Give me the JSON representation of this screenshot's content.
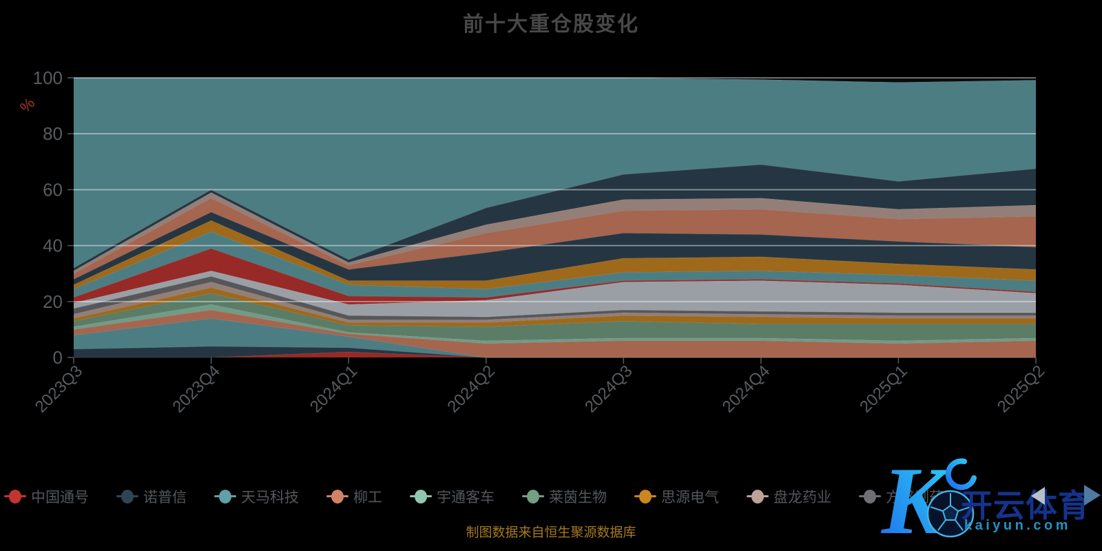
{
  "title": "前十大重仓股变化",
  "footer_note": "制图数据来自恒生聚源数据库",
  "watermark": {
    "brand": "开云体育",
    "domain": "kaiyun.com",
    "logo_letter": "K",
    "logo_icon": "soccer-ball"
  },
  "y_axis": {
    "unit_label": "%",
    "ticks": [
      0,
      20,
      40,
      60,
      80,
      100
    ],
    "unit_color": "#b0342c"
  },
  "x_axis": {
    "categories": [
      "2023Q3",
      "2023Q4",
      "2024Q1",
      "2024Q2",
      "2024Q3",
      "2024Q4",
      "2025Q1",
      "2025Q2"
    ]
  },
  "legend": {
    "items": [
      {
        "label": "中国通号",
        "color": "#c23531"
      },
      {
        "label": "诺普信",
        "color": "#2f4554"
      },
      {
        "label": "天马科技",
        "color": "#61a0a8"
      },
      {
        "label": "柳工",
        "color": "#d48265"
      },
      {
        "label": "宇通客车",
        "color": "#91c7ae"
      },
      {
        "label": "莱茵生物",
        "color": "#749f83"
      },
      {
        "label": "思源电气",
        "color": "#ca8622"
      },
      {
        "label": "盘龙药业",
        "color": "#bda29a"
      },
      {
        "label": "方盛制药",
        "color": "#6e7074"
      }
    ],
    "prev_icon": "left-arrow",
    "next_icon": "right-arrow"
  },
  "colors": {
    "background": "#000000",
    "grid": "rgba(255,255,255,0.5)",
    "title_text": "#484848",
    "axis_tick_text": "#585c60",
    "legend_text": "#53575c",
    "caption_text": "#a5791f",
    "watermark_brand": "#15338c",
    "watermark_domain": "#1f93c6"
  },
  "chart_data": {
    "type": "area",
    "stacked": true,
    "normalized_percent": true,
    "title": "前十大重仓股变化",
    "xlabel": "",
    "ylabel": "%",
    "ylim": [
      0,
      100
    ],
    "grid": true,
    "legend_position": "bottom",
    "x": [
      "2023Q3",
      "2023Q4",
      "2024Q1",
      "2024Q2",
      "2024Q3",
      "2024Q4",
      "2025Q1",
      "2025Q2"
    ],
    "series": [
      {
        "name": "中国通号",
        "color": "#c23531",
        "values": [
          0,
          0,
          2,
          0,
          0,
          0,
          0,
          0
        ]
      },
      {
        "name": "诺普信",
        "color": "#2f4554",
        "values": [
          3,
          4,
          1.5,
          0,
          0,
          0,
          0,
          0
        ]
      },
      {
        "name": "天马科技",
        "color": "#61a0a8",
        "values": [
          5,
          10,
          4,
          0,
          0,
          0,
          0,
          0
        ]
      },
      {
        "name": "柳工",
        "color": "#d48265",
        "values": [
          2,
          3,
          1,
          5,
          6,
          6,
          5,
          6
        ]
      },
      {
        "name": "宇通客车",
        "color": "#91c7ae",
        "values": [
          1,
          2,
          0.5,
          1,
          1,
          1,
          1,
          1
        ]
      },
      {
        "name": "莱茵生物",
        "color": "#749f83",
        "values": [
          2,
          4,
          2.5,
          5,
          6,
          5,
          6,
          5
        ]
      },
      {
        "name": "思源电气",
        "color": "#ca8622",
        "values": [
          1,
          2,
          1,
          1.5,
          2,
          2.5,
          2,
          2
        ]
      },
      {
        "name": "盘龙药业",
        "color": "#bda29a",
        "values": [
          1.5,
          2,
          1,
          1,
          1,
          1,
          1,
          1
        ]
      },
      {
        "name": "方盛制药",
        "color": "#6e7074",
        "values": [
          2,
          2,
          1.5,
          1,
          1,
          1,
          1,
          1
        ]
      },
      {
        "name": "",
        "color": "#c4ccd3",
        "values": [
          2,
          2,
          4,
          6,
          10,
          11,
          10,
          7
        ]
      },
      {
        "name": "",
        "color": "#c23531",
        "values": [
          2,
          8,
          3,
          1,
          0.5,
          0.5,
          0.5,
          0.5
        ]
      },
      {
        "name": "",
        "color": "#61a0a8",
        "values": [
          3,
          6,
          4,
          3,
          3,
          3,
          3,
          4
        ]
      },
      {
        "name": "",
        "color": "#ca8622",
        "values": [
          1.5,
          4,
          1.5,
          3,
          5,
          5,
          4,
          4
        ]
      },
      {
        "name": "",
        "color": "#2f4554",
        "values": [
          2,
          3,
          4,
          10,
          9,
          8,
          8,
          8
        ]
      },
      {
        "name": "",
        "color": "#d48265",
        "values": [
          2,
          5,
          1.5,
          7,
          8,
          9,
          8,
          11
        ]
      },
      {
        "name": "",
        "color": "#bda29a",
        "values": [
          1,
          2,
          1,
          3,
          4,
          4,
          3.5,
          4
        ]
      },
      {
        "name": "",
        "color": "#2f4554",
        "values": [
          1,
          1,
          1,
          6,
          9,
          12,
          10,
          13
        ]
      },
      {
        "name": "",
        "color": "#61a0a8",
        "values": [
          68,
          40,
          65,
          46.5,
          34.5,
          30.4,
          35.4,
          31.7
        ]
      },
      {
        "name": "",
        "color": "#0a0a0e",
        "alpha": 1,
        "values": [
          0,
          0,
          0,
          0,
          0,
          0.6,
          1.6,
          0.8
        ]
      }
    ]
  }
}
